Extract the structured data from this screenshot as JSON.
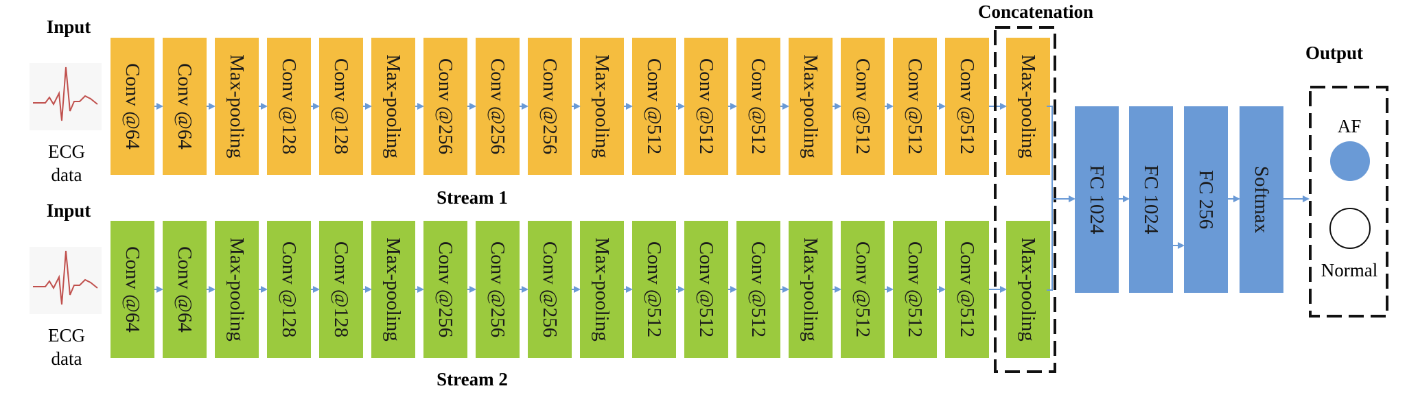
{
  "labels": {
    "input_top": "Input",
    "input_bottom": "Input",
    "ecg_top_1": "ECG",
    "ecg_top_2": "data",
    "ecg_bottom_1": "ECG",
    "ecg_bottom_2": "data",
    "stream1": "Stream 1",
    "stream2": "Stream 2",
    "concatenation": "Concatenation",
    "output": "Output",
    "af": "AF",
    "normal": "Normal"
  },
  "stream1_blocks": [
    "Conv @64",
    "Conv @64",
    "Max-pooling",
    "Conv @128",
    "Conv @128",
    "Max-pooling",
    "Conv @256",
    "Conv @256",
    "Conv @256",
    "Max-pooling",
    "Conv @512",
    "Conv @512",
    "Conv @512",
    "Max-pooling",
    "Conv @512",
    "Conv @512",
    "Conv @512",
    "Max-pooling"
  ],
  "stream2_blocks": [
    "Conv @64",
    "Conv @64",
    "Max-pooling",
    "Conv @128",
    "Conv @128",
    "Max-pooling",
    "Conv @256",
    "Conv @256",
    "Conv @256",
    "Max-pooling",
    "Conv @512",
    "Conv @512",
    "Conv @512",
    "Max-pooling",
    "Conv @512",
    "Conv @512",
    "Conv @512",
    "Max-pooling"
  ],
  "fc_blocks": [
    "FC 1024",
    "FC 1024",
    "FC 256",
    "Softmax"
  ],
  "colors": {
    "stream1": "#f5bd3f",
    "stream2": "#9bca3e",
    "fc": "#6a9ad6",
    "arrow": "#6a9ad6",
    "ecg": "#c0504d",
    "af_circle": "#6a9ad6"
  }
}
